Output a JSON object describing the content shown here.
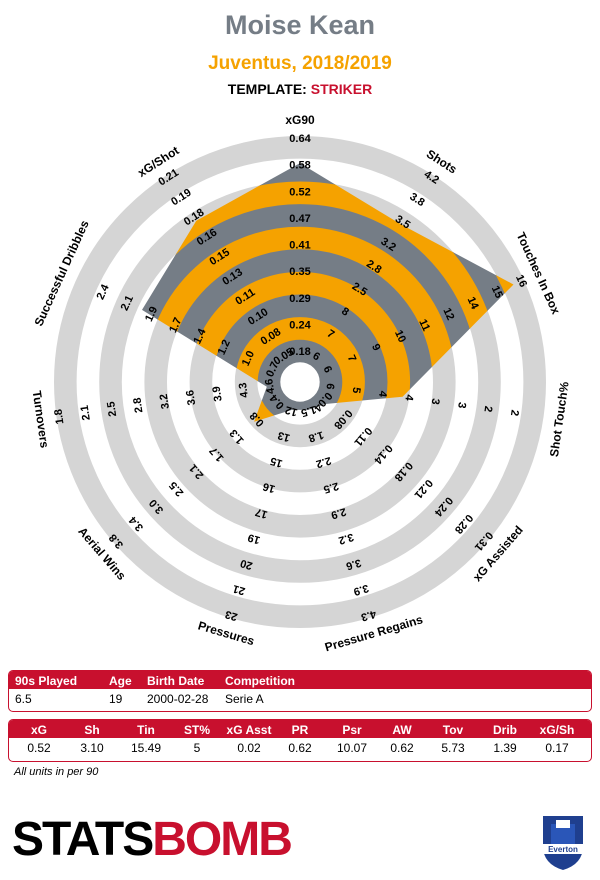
{
  "header": {
    "player": "Moise Kean",
    "team_season": "Juventus, 2018/2019",
    "template_label": "TEMPLATE:",
    "template_value": "STRIKER"
  },
  "chart_data": {
    "type": "radar",
    "rings": 5,
    "axes": [
      {
        "label": "xG90",
        "ticks": [
          "0.18",
          "0.24",
          "0.29",
          "0.35",
          "0.41",
          "0.47",
          "0.52",
          "0.58",
          "0.64"
        ],
        "value": 0.52,
        "fill_fraction": 0.88
      },
      {
        "label": "Shots",
        "ticks": [
          "6",
          "7",
          "8",
          "2.5",
          "2.8",
          "3.2",
          "3.5",
          "3.8",
          "4.2"
        ],
        "value": 3.1,
        "fill_fraction": 0.74
      },
      {
        "label": "Touches In Box",
        "ticks": [
          "6",
          "7",
          "9",
          "10",
          "11",
          "12",
          "14",
          "15",
          "16"
        ],
        "value": 15.49,
        "fill_fraction": 0.95
      },
      {
        "label": "Shot Touch%",
        "ticks": [
          "6",
          "5",
          "4",
          "4",
          "3",
          "3",
          "2",
          "2",
          ""
        ],
        "value": 5,
        "fill_fraction": 0.37
      },
      {
        "label": "xG Assisted",
        "ticks": [
          "0.04",
          "0.08",
          "0.11",
          "0.14",
          "0.18",
          "0.21",
          "0.24",
          "0.28",
          "0.31"
        ],
        "value": 0.02,
        "fill_fraction": 0.06
      },
      {
        "label": "Pressure Regains",
        "ticks": [
          "1.5",
          "1.8",
          "2.2",
          "2.5",
          "2.9",
          "3.2",
          "3.6",
          "3.9",
          "4.3"
        ],
        "value": 0.62,
        "fill_fraction": 0.04
      },
      {
        "label": "Pressures",
        "ticks": [
          "12",
          "13",
          "15",
          "16",
          "17",
          "19",
          "20",
          "21",
          "23"
        ],
        "value": 10.07,
        "fill_fraction": 0.04
      },
      {
        "label": "Aerial Wins",
        "ticks": [
          "0.4",
          "0.8",
          "1.3",
          "1.7",
          "2.1",
          "2.5",
          "3.0",
          "3.4",
          "3.8"
        ],
        "value": 0.62,
        "fill_fraction": 0.18
      },
      {
        "label": "Turnovers",
        "ticks": [
          "4.6",
          "4.3",
          "3.9",
          "3.6",
          "3.2",
          "2.8",
          "2.5",
          "2.1",
          "1.8"
        ],
        "value": 5.73,
        "fill_fraction": 0.06
      },
      {
        "label": "Successful Dribbles",
        "ticks": [
          "0.7",
          "1.0",
          "1.2",
          "1.4",
          "1.7",
          "1.9",
          "2.1",
          "2.4",
          ""
        ],
        "value": 1.39,
        "fill_fraction": 0.68
      },
      {
        "label": "xG/Shot",
        "ticks": [
          "0.05",
          "0.08",
          "0.10",
          "0.11",
          "0.13",
          "0.15",
          "0.16",
          "0.18",
          "0.19",
          "0.21"
        ],
        "value": 0.17,
        "fill_fraction": 0.76
      }
    ],
    "colors": {
      "ring": "#d5d5d5",
      "fill_a": "#f5a200",
      "fill_b": "#757d86",
      "accent": "#c8102e"
    }
  },
  "info_table": {
    "headers": [
      "90s Played",
      "Age",
      "Birth Date",
      "Competition"
    ],
    "values": [
      "6.5",
      "19",
      "2000-02-28",
      "Serie A"
    ]
  },
  "stats_table": {
    "headers": [
      "xG",
      "Sh",
      "Tin",
      "ST%",
      "xG Asst",
      "PR",
      "Psr",
      "AW",
      "Tov",
      "Drib",
      "xG/Sh"
    ],
    "values": [
      "0.52",
      "3.10",
      "15.49",
      "5",
      "0.02",
      "0.62",
      "10.07",
      "0.62",
      "5.73",
      "1.39",
      "0.17"
    ]
  },
  "units_note": "All units in per 90",
  "logo": {
    "part1": "STATS",
    "part2": "BOMB"
  },
  "crest": {
    "label": "Everton"
  }
}
